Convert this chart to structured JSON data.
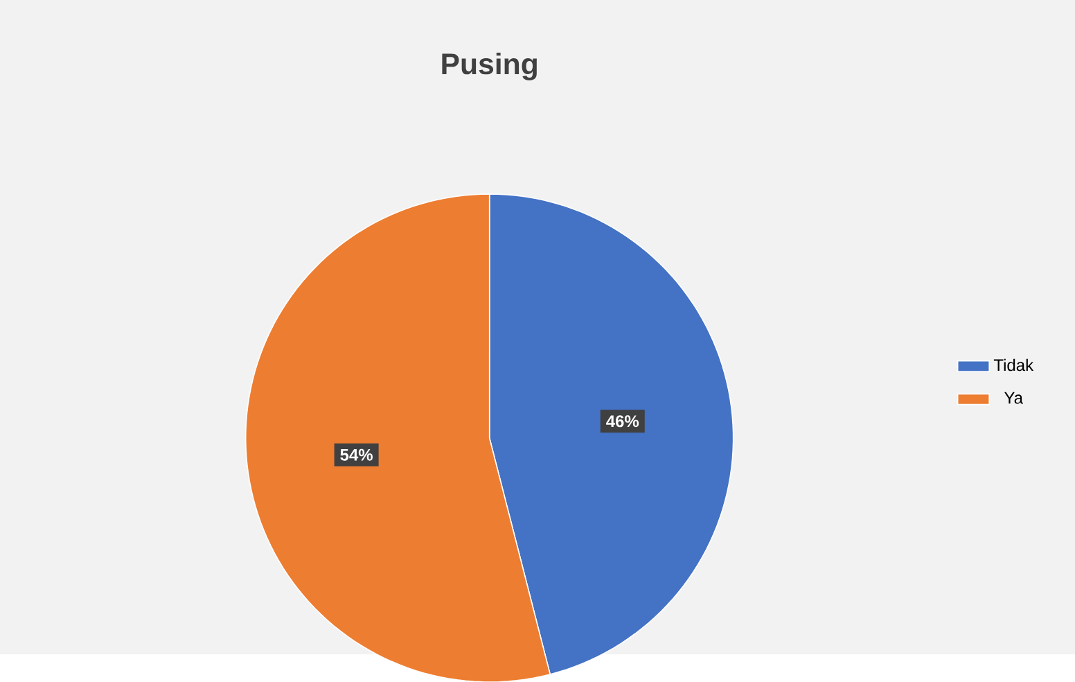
{
  "chart_data": {
    "type": "pie",
    "title": "Pusing",
    "categories": [
      "Tidak",
      "Ya"
    ],
    "values": [
      46,
      54
    ],
    "colors": [
      "#4472c4",
      "#ed7d31"
    ],
    "value_labels": [
      "46%",
      "54%"
    ],
    "legend": "right"
  }
}
